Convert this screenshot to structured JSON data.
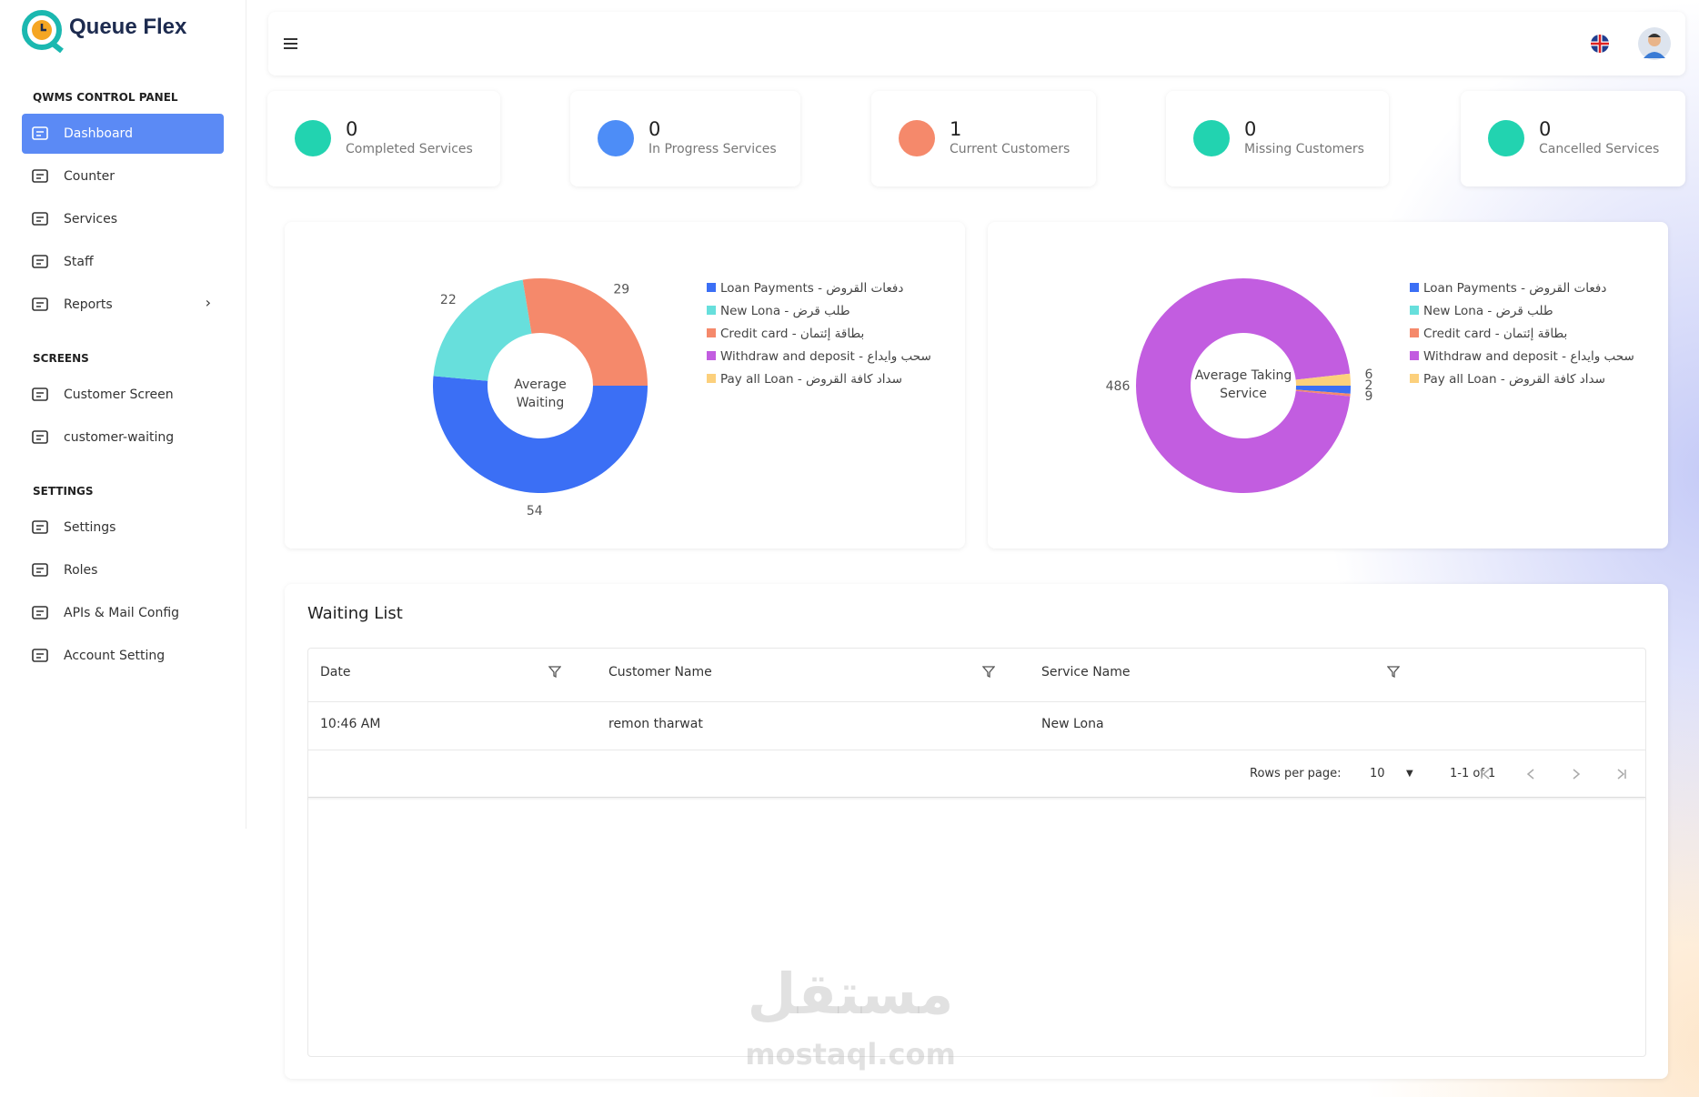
{
  "brand": "Queue Flex",
  "sidebar": [
    {
      "title": "QWMS CONTROL PANEL",
      "items": [
        "Dashboard",
        "Counter",
        "Services",
        "Staff",
        "Reports"
      ]
    },
    {
      "title": "SCREENS",
      "items": [
        "Customer Screen",
        "customer-waiting"
      ]
    },
    {
      "title": "SETTINGS",
      "items": [
        "Settings",
        "Roles",
        "APIs & Mail Config",
        "Account Setting"
      ]
    }
  ],
  "stats": [
    {
      "value": 0,
      "label": "Completed Services"
    },
    {
      "value": 0,
      "label": "In Progress Services"
    },
    {
      "value": 1,
      "label": "Current Customers"
    },
    {
      "value": 0,
      "label": "Missing Customers"
    },
    {
      "value": 0,
      "label": "Cancelled Services"
    }
  ],
  "chart_data": [
    {
      "type": "pie",
      "title": "Average Waiting",
      "categories": [
        "Loan Payments - دفعات القروض",
        "New Lona - طلب قرض",
        "Credit card - بطاقة إئتمان",
        "Withdraw and deposit - سحب وايداع",
        "Pay all Loan - سداد كافة القروض"
      ],
      "values": [
        54,
        22,
        29,
        0,
        0
      ],
      "colors": [
        "#3b6ff5",
        "#67dfdc",
        "#f5896b",
        "#c25de0",
        "#fcd07c"
      ]
    },
    {
      "type": "pie",
      "title": "Average Taking Service",
      "categories": [
        "Loan Payments - دفعات القروض",
        "New Lona - طلب قرض",
        "Credit card - بطاقة إئتمان",
        "Withdraw and deposit - سحب وايداع",
        "Pay all Loan - سداد كافة القروض"
      ],
      "values": [
        6,
        0,
        2,
        486,
        9
      ],
      "colors": [
        "#3b6ff5",
        "#67dfdc",
        "#f5896b",
        "#c25de0",
        "#fcd07c"
      ]
    }
  ],
  "table": {
    "title": "Waiting List",
    "columns": [
      "Date",
      "Customer Name",
      "Service Name"
    ],
    "rows": [
      [
        "10:46 AM",
        "remon tharwat",
        "New Lona"
      ]
    ],
    "rows_per_page_label": "Rows per page:",
    "rows_per_page": 10,
    "range": "1-1 of 1"
  },
  "watermark": {
    "arabic": "مستقل",
    "latin": "mostaql.com"
  }
}
